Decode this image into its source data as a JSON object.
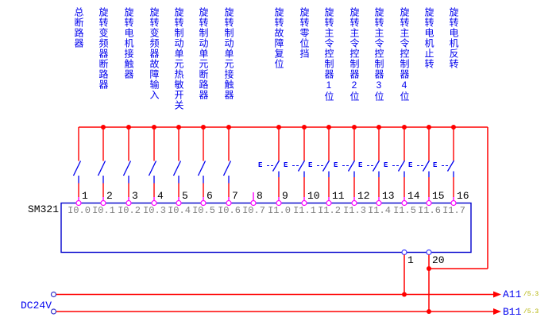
{
  "module": {
    "name": "SM321",
    "bottom_terminals": [
      "1",
      "20"
    ]
  },
  "power": {
    "label": "DC24V"
  },
  "outputs": [
    {
      "label": "A11",
      "ref": "/5.3"
    },
    {
      "label": "B11",
      "ref": "/5.3"
    }
  ],
  "symbols": {
    "e_actuator_label": "E"
  },
  "colors": {
    "wire": "#ff0000",
    "symbol": "#0000ee",
    "terminal": "#ff00ff",
    "module_border": "#0000cc",
    "bottom_terminal": "#3c3cff",
    "dc_terminal": "#3333cc",
    "channel_text": "#808080",
    "label_text": "#0000ee",
    "ref_text": "#b2b200",
    "number_text": "#000000"
  },
  "columns": [
    {
      "num": "1",
      "channel": "I0.0",
      "label": "总断路器",
      "switch": "no-contact"
    },
    {
      "num": "2",
      "channel": "I0.1",
      "label": "旋转变频器断路器",
      "switch": "no-contact"
    },
    {
      "num": "3",
      "channel": "I0.2",
      "label": "旋转电机接触器",
      "switch": "no-contact"
    },
    {
      "num": "4",
      "channel": "I0.3",
      "label": "旋转变频器故障输入",
      "switch": "no-contact"
    },
    {
      "num": "5",
      "channel": "I0.4",
      "label": "旋转制动单元热敏开关",
      "switch": "no-contact"
    },
    {
      "num": "6",
      "channel": "I0.5",
      "label": "旋转制动单元断路器",
      "switch": "no-contact"
    },
    {
      "num": "7",
      "channel": "I0.6",
      "label": "旋转制动单元接触器",
      "switch": "no-contact"
    },
    {
      "num": "8",
      "channel": "I0.7",
      "label": "",
      "switch": "none"
    },
    {
      "num": "9",
      "channel": "I1.0",
      "label": "旋转故障复位",
      "switch": "e-contact"
    },
    {
      "num": "10",
      "channel": "I1.1",
      "label": "旋转零位挡",
      "switch": "e-contact"
    },
    {
      "num": "11",
      "channel": "I1.2",
      "label": "旋转主令控制器1位",
      "switch": "e-contact"
    },
    {
      "num": "12",
      "channel": "I1.3",
      "label": "旋转主令控制器2位",
      "switch": "e-contact"
    },
    {
      "num": "13",
      "channel": "I1.4",
      "label": "旋转主令控制器3位",
      "switch": "e-contact"
    },
    {
      "num": "14",
      "channel": "I1.5",
      "label": "旋转主令控制器4位",
      "switch": "e-contact"
    },
    {
      "num": "15",
      "channel": "I1.6",
      "label": "旋转电机止转",
      "switch": "e-contact"
    },
    {
      "num": "16",
      "channel": "I1.7",
      "label": "旋转电机反转",
      "switch": "e-contact"
    }
  ]
}
